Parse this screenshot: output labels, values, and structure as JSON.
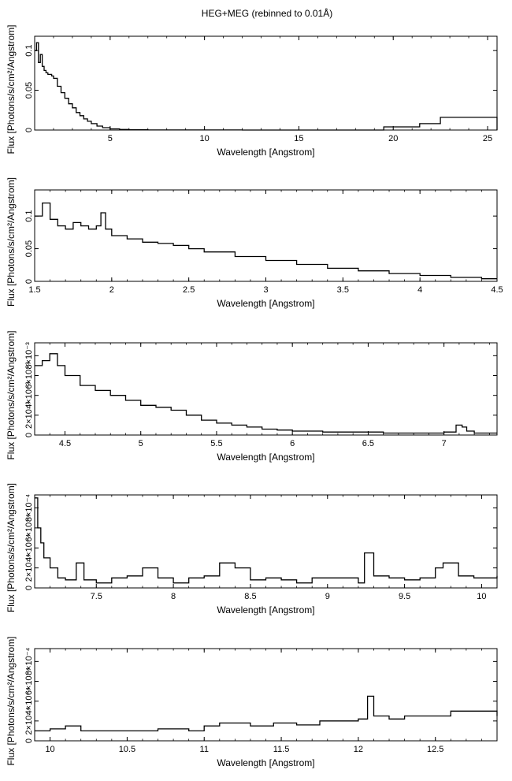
{
  "title": "HEG+MEG (rebinned to 0.01Å)",
  "chart_data": [
    {
      "type": "line",
      "xlabel": "Wavelength [Angstrom]",
      "ylabel": "Flux [Photons/s/cm²/Angstrom]",
      "xlim": [
        1.0,
        25.5
      ],
      "ylim": [
        0,
        0.118
      ],
      "xticks": [
        {
          "v": 5,
          "label": "5"
        },
        {
          "v": 10,
          "label": "10"
        },
        {
          "v": 15,
          "label": "15"
        },
        {
          "v": 20,
          "label": "20"
        },
        {
          "v": 25,
          "label": "25"
        }
      ],
      "yticks": [
        {
          "v": 0,
          "label": "0"
        },
        {
          "v": 0.05,
          "label": "0.05"
        },
        {
          "v": 0.1,
          "label": "0.1"
        }
      ],
      "yexp": "",
      "series": [
        {
          "x": [
            1.0,
            1.1,
            1.2,
            1.3,
            1.4,
            1.5,
            1.6,
            1.7,
            1.8,
            1.9,
            2.0,
            2.2,
            2.4,
            2.6,
            2.8,
            3.0,
            3.2,
            3.4,
            3.6,
            3.8,
            4.0,
            4.3,
            4.6,
            5.0,
            5.5,
            6.0,
            7.0,
            9.0,
            12.0,
            16.0,
            19.5,
            21.4,
            22.5,
            25.5
          ],
          "y": [
            0.1,
            0.11,
            0.085,
            0.095,
            0.08,
            0.075,
            0.072,
            0.07,
            0.07,
            0.068,
            0.065,
            0.055,
            0.047,
            0.04,
            0.033,
            0.028,
            0.022,
            0.018,
            0.014,
            0.011,
            0.008,
            0.005,
            0.003,
            0.0015,
            0.0007,
            0.0003,
            0.0001,
            5e-05,
            3e-05,
            2e-05,
            0.004,
            0.008,
            0.016,
            0.0
          ]
        }
      ]
    },
    {
      "type": "line",
      "xlabel": "Wavelength [Angstrom]",
      "ylabel": "Flux [Photons/s/cm²/Angstrom]",
      "xlim": [
        1.5,
        4.5
      ],
      "ylim": [
        0,
        0.14
      ],
      "xticks": [
        {
          "v": 1.5,
          "label": "1.5"
        },
        {
          "v": 2,
          "label": "2"
        },
        {
          "v": 2.5,
          "label": "2.5"
        },
        {
          "v": 3,
          "label": "3"
        },
        {
          "v": 3.5,
          "label": "3.5"
        },
        {
          "v": 4,
          "label": "4"
        },
        {
          "v": 4.5,
          "label": "4.5"
        }
      ],
      "yticks": [
        {
          "v": 0,
          "label": "0"
        },
        {
          "v": 0.05,
          "label": "0.05"
        },
        {
          "v": 0.1,
          "label": "0.1"
        }
      ],
      "yexp": "",
      "series": [
        {
          "x": [
            1.5,
            1.55,
            1.6,
            1.65,
            1.7,
            1.75,
            1.8,
            1.85,
            1.9,
            1.93,
            1.96,
            2.0,
            2.1,
            2.2,
            2.3,
            2.4,
            2.5,
            2.6,
            2.8,
            3.0,
            3.2,
            3.4,
            3.6,
            3.8,
            4.0,
            4.2,
            4.4,
            4.5
          ],
          "y": [
            0.1,
            0.12,
            0.095,
            0.085,
            0.08,
            0.09,
            0.085,
            0.08,
            0.085,
            0.105,
            0.08,
            0.07,
            0.065,
            0.06,
            0.058,
            0.055,
            0.05,
            0.045,
            0.038,
            0.032,
            0.026,
            0.02,
            0.016,
            0.012,
            0.009,
            0.006,
            0.004,
            0.004
          ]
        }
      ]
    },
    {
      "type": "line",
      "xlabel": "Wavelength [Angstrom]",
      "ylabel": "Flux [Photons/s/cm²/Angstrom]",
      "xlim": [
        4.3,
        7.35
      ],
      "ylim": [
        0,
        0.0093
      ],
      "xticks": [
        {
          "v": 4.5,
          "label": "4.5"
        },
        {
          "v": 5,
          "label": "5"
        },
        {
          "v": 5.5,
          "label": "5.5"
        },
        {
          "v": 6,
          "label": "6"
        },
        {
          "v": 6.5,
          "label": "6.5"
        },
        {
          "v": 7,
          "label": "7"
        }
      ],
      "yticks": [
        {
          "v": 0,
          "label": "0"
        },
        {
          "v": 0.002,
          "label": "2×10⁻³"
        },
        {
          "v": 0.004,
          "label": "4×10⁻³"
        },
        {
          "v": 0.006,
          "label": "6×10⁻³"
        },
        {
          "v": 0.008,
          "label": "8×10⁻³"
        }
      ],
      "yexp": "",
      "series": [
        {
          "x": [
            4.3,
            4.35,
            4.4,
            4.45,
            4.5,
            4.6,
            4.7,
            4.8,
            4.9,
            5.0,
            5.1,
            5.2,
            5.3,
            5.4,
            5.5,
            5.6,
            5.7,
            5.8,
            5.9,
            6.0,
            6.2,
            6.4,
            6.6,
            6.8,
            7.0,
            7.08,
            7.12,
            7.15,
            7.2,
            7.35
          ],
          "y": [
            0.007,
            0.0075,
            0.0082,
            0.007,
            0.006,
            0.005,
            0.0045,
            0.004,
            0.0035,
            0.003,
            0.0028,
            0.0025,
            0.002,
            0.0015,
            0.0012,
            0.001,
            0.0008,
            0.0006,
            0.0005,
            0.0004,
            0.0003,
            0.0003,
            0.0002,
            0.0002,
            0.0003,
            0.001,
            0.0008,
            0.0004,
            0.0002,
            0.0002
          ]
        }
      ]
    },
    {
      "type": "line",
      "xlabel": "Wavelength [Angstrom]",
      "ylabel": "Flux [Photons/s/cm²/Angstrom]",
      "xlim": [
        7.1,
        10.1
      ],
      "ylim": [
        0,
        0.00093
      ],
      "xticks": [
        {
          "v": 7.5,
          "label": "7.5"
        },
        {
          "v": 8,
          "label": "8"
        },
        {
          "v": 8.5,
          "label": "8.5"
        },
        {
          "v": 9,
          "label": "9"
        },
        {
          "v": 9.5,
          "label": "9.5"
        },
        {
          "v": 10,
          "label": "10"
        }
      ],
      "yticks": [
        {
          "v": 0,
          "label": "0"
        },
        {
          "v": 0.0002,
          "label": "2×10⁻⁴"
        },
        {
          "v": 0.0004,
          "label": "4×10⁻⁴"
        },
        {
          "v": 0.0006,
          "label": "6×10⁻⁴"
        },
        {
          "v": 0.0008,
          "label": "8×10⁻⁴"
        }
      ],
      "yexp": "",
      "series": [
        {
          "x": [
            7.1,
            7.12,
            7.14,
            7.16,
            7.2,
            7.25,
            7.3,
            7.37,
            7.42,
            7.5,
            7.6,
            7.7,
            7.8,
            7.9,
            8.0,
            8.1,
            8.2,
            8.3,
            8.4,
            8.5,
            8.6,
            8.7,
            8.8,
            8.9,
            9.0,
            9.1,
            9.2,
            9.24,
            9.3,
            9.4,
            9.5,
            9.6,
            9.7,
            9.75,
            9.85,
            9.95,
            10.1
          ],
          "y": [
            0.0009,
            0.0006,
            0.00045,
            0.0003,
            0.0002,
            0.0001,
            8e-05,
            0.00025,
            8e-05,
            5e-05,
            0.0001,
            0.00012,
            0.0002,
            0.0001,
            5e-05,
            0.0001,
            0.00012,
            0.00025,
            0.0002,
            8e-05,
            0.0001,
            8e-05,
            5e-05,
            0.0001,
            0.0001,
            0.0001,
            5e-05,
            0.00035,
            0.00012,
            0.0001,
            8e-05,
            0.0001,
            0.0002,
            0.00025,
            0.00012,
            0.0001,
            0.00012
          ]
        }
      ]
    },
    {
      "type": "line",
      "xlabel": "Wavelength [Angstrom]",
      "ylabel": "Flux [Photons/s/cm²/Angstrom]",
      "xlim": [
        9.9,
        12.9
      ],
      "ylim": [
        0,
        0.00093
      ],
      "xticks": [
        {
          "v": 10,
          "label": "10"
        },
        {
          "v": 10.5,
          "label": "10.5"
        },
        {
          "v": 11,
          "label": "11"
        },
        {
          "v": 11.5,
          "label": "11.5"
        },
        {
          "v": 12,
          "label": "12"
        },
        {
          "v": 12.5,
          "label": "12.5"
        }
      ],
      "yticks": [
        {
          "v": 0,
          "label": "0"
        },
        {
          "v": 0.0002,
          "label": "2×10⁻⁴"
        },
        {
          "v": 0.0004,
          "label": "4×10⁻⁴"
        },
        {
          "v": 0.0006,
          "label": "6×10⁻⁴"
        },
        {
          "v": 0.0008,
          "label": "8×10⁻⁴"
        }
      ],
      "yexp": "",
      "series": [
        {
          "x": [
            9.9,
            10.0,
            10.1,
            10.2,
            10.3,
            10.5,
            10.7,
            10.9,
            11.0,
            11.1,
            11.3,
            11.45,
            11.6,
            11.75,
            11.9,
            12.0,
            12.06,
            12.1,
            12.2,
            12.3,
            12.5,
            12.6,
            12.9
          ],
          "y": [
            0.0001,
            0.00012,
            0.00015,
            0.0001,
            0.0001,
            0.0001,
            0.00012,
            0.0001,
            0.00015,
            0.00018,
            0.00015,
            0.00018,
            0.00016,
            0.0002,
            0.0002,
            0.00022,
            0.00045,
            0.00025,
            0.00022,
            0.00025,
            0.00025,
            0.0003,
            0.00025
          ]
        }
      ]
    }
  ]
}
